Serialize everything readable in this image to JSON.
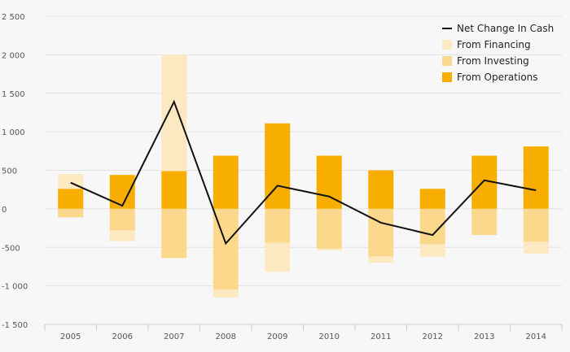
{
  "chart_data": {
    "type": "bar",
    "categories": [
      "2005",
      "2006",
      "2007",
      "2008",
      "2009",
      "2010",
      "2011",
      "2012",
      "2013",
      "2014"
    ],
    "series": [
      {
        "name": "From Operations",
        "type": "stacked-bar",
        "color": "#f7ae00",
        "values": [
          260,
          440,
          490,
          690,
          1110,
          690,
          500,
          260,
          690,
          810
        ]
      },
      {
        "name": "From Investing",
        "type": "stacked-bar",
        "color": "#fcd88c",
        "values": [
          -110,
          -280,
          -640,
          -1050,
          -440,
          -520,
          -620,
          -460,
          -340,
          -430
        ]
      },
      {
        "name": "From Financing",
        "type": "stacked-bar",
        "color": "#fde9c1",
        "values": [
          190,
          -140,
          1510,
          -100,
          -380,
          -20,
          -80,
          -160,
          0,
          -150
        ]
      },
      {
        "name": "Net Change In Cash",
        "type": "line",
        "color": "#111111",
        "values": [
          340,
          40,
          1390,
          -450,
          300,
          160,
          -180,
          -340,
          370,
          240
        ]
      }
    ],
    "yticks": [
      2500,
      2000,
      1500,
      1000,
      500,
      0,
      -500,
      -1000,
      -1500
    ],
    "ytick_labels": [
      "2 500",
      "2 000",
      "1 500",
      "1 000",
      "500",
      "0",
      "-500",
      "-1 000",
      "-1 500"
    ],
    "ylim": [
      -1500,
      2500
    ],
    "legend": [
      "Net Change In Cash",
      "From Financing",
      "From Investing",
      "From Operations"
    ],
    "legend_position": "top-right",
    "grid": true,
    "title": "",
    "xlabel": "",
    "ylabel": ""
  }
}
